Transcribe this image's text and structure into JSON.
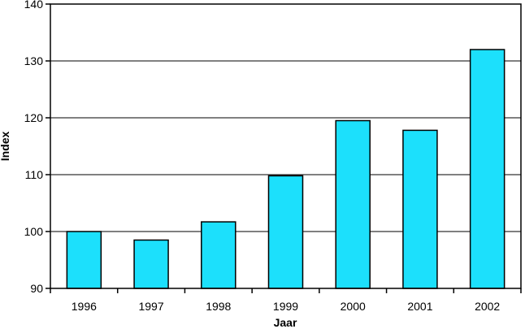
{
  "chart_data": {
    "type": "bar",
    "title": "",
    "xlabel": "Jaar",
    "ylabel": "Index",
    "categories": [
      "1996",
      "1997",
      "1998",
      "1999",
      "2000",
      "2001",
      "2002"
    ],
    "values": [
      100.0,
      98.5,
      101.7,
      109.8,
      119.5,
      117.8,
      132.0
    ],
    "ylim": [
      90,
      140
    ],
    "yticks": [
      "90",
      "100",
      "110",
      "120",
      "130",
      "140"
    ],
    "grid": true,
    "legend": "none",
    "bar_color": "#1ce0fc",
    "bar_edge_color": "#000000"
  }
}
